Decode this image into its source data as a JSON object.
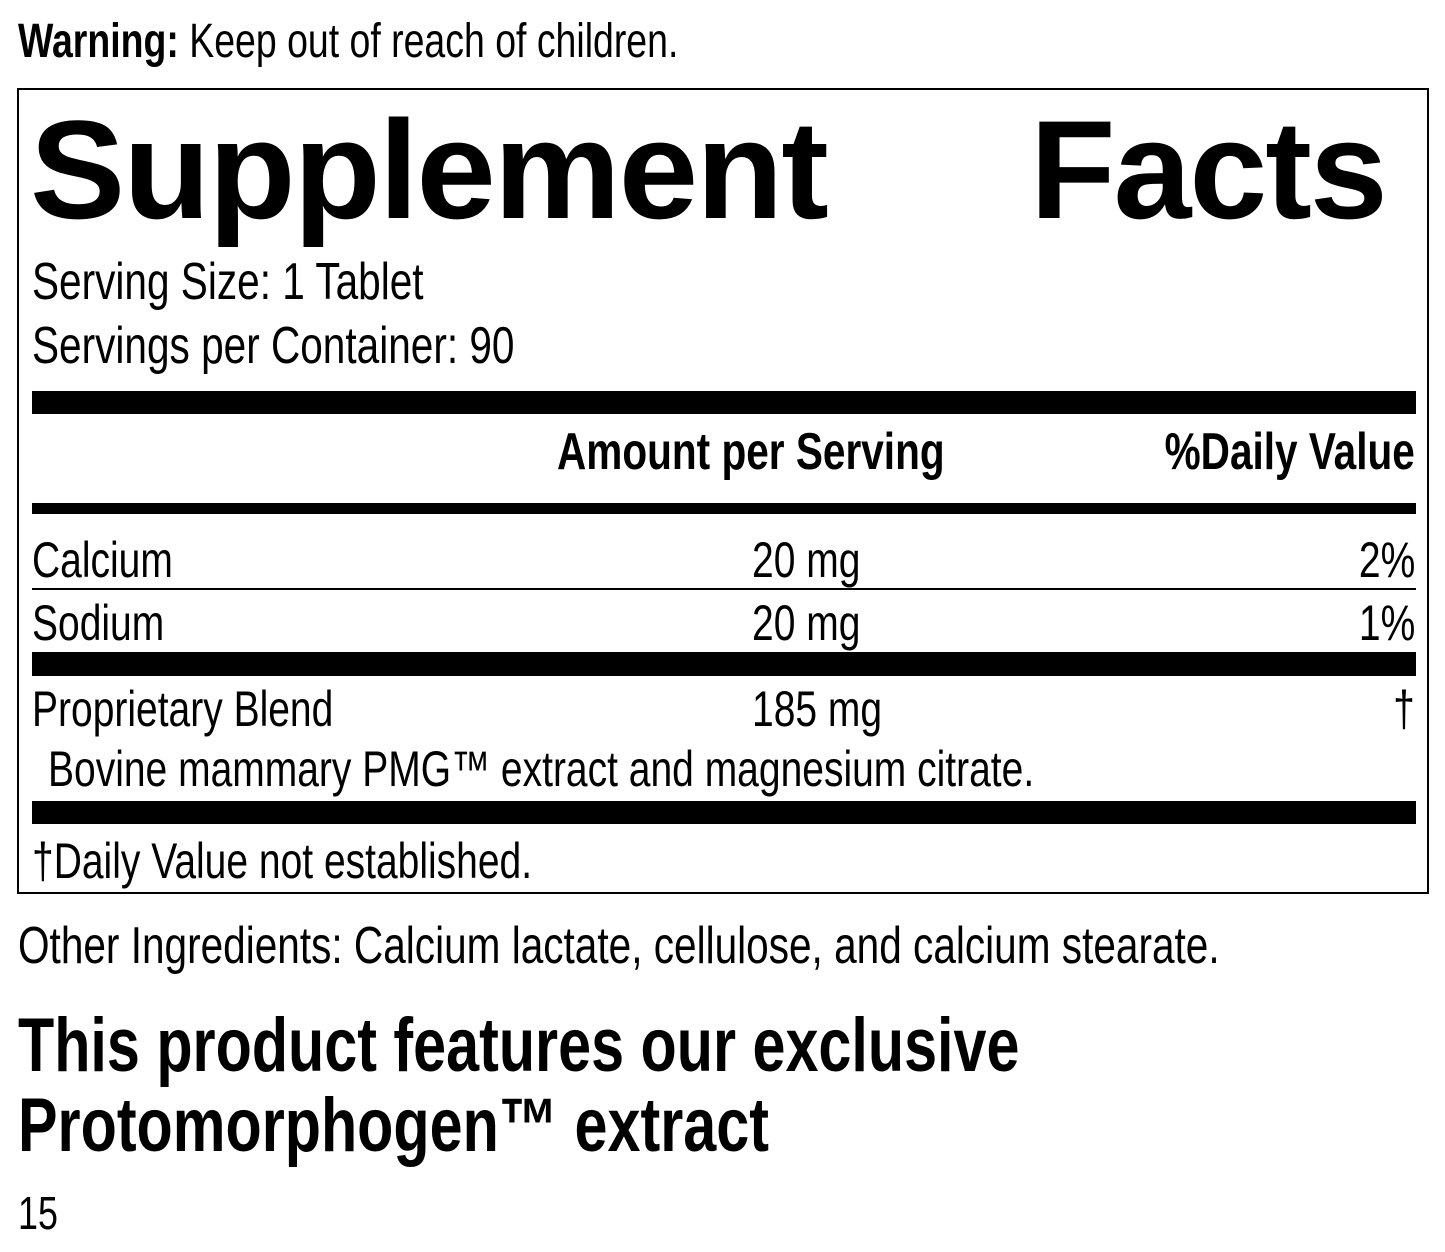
{
  "warning": {
    "label": "Warning:",
    "text": " Keep out of reach of children."
  },
  "facts": {
    "title_left": "Supplement",
    "title_right": "Facts",
    "serving_size": "Serving Size: 1 Tablet",
    "servings_per_container": "Servings per Container: 90",
    "header": {
      "amount": "Amount per Serving",
      "dv": "%Daily Value"
    },
    "rows": [
      {
        "name": "Calcium",
        "amount": "20 mg",
        "dv": "2%"
      },
      {
        "name": "Sodium",
        "amount": "20 mg",
        "dv": "1%"
      },
      {
        "name": "Proprietary Blend",
        "amount": "185 mg",
        "dv": "†"
      }
    ],
    "blend_detail": "Bovine mammary PMG™ extract and magnesium citrate.",
    "footnote": "†Daily Value not established."
  },
  "other_ingredients": "Other Ingredients: Calcium lactate, cellulose, and calcium stearate.",
  "feature": {
    "line1": "This product features our exclusive",
    "line2": "Protomorphogen™ extract"
  },
  "page_number": "15"
}
